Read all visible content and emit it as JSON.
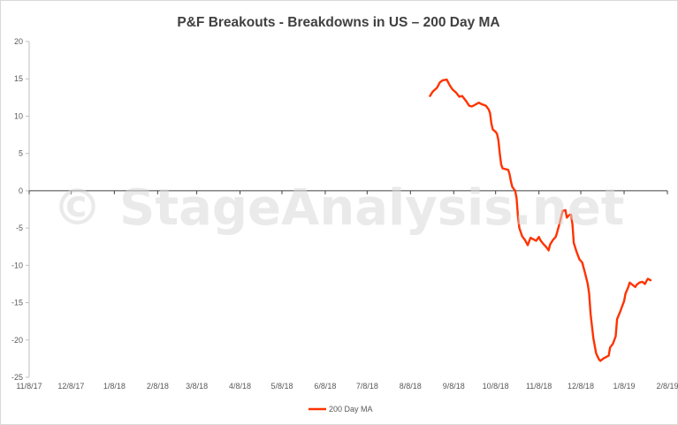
{
  "chart_data": {
    "type": "line",
    "title": "P&F Breakouts - Breakdowns in US – 200 Day MA",
    "watermark": "© StageAnalysis.net",
    "xlabel": "",
    "ylabel": "",
    "x_tick_labels": [
      "11/8/17",
      "12/8/17",
      "1/8/18",
      "2/8/18",
      "3/8/18",
      "4/8/18",
      "5/8/18",
      "6/8/18",
      "7/8/18",
      "8/8/18",
      "9/8/18",
      "10/8/18",
      "11/8/18",
      "12/8/18",
      "1/8/19",
      "2/8/19"
    ],
    "y_ticks": [
      20,
      15,
      10,
      5,
      0,
      -5,
      -10,
      -15,
      -20,
      -25
    ],
    "ylim": [
      -25,
      20
    ],
    "grid": false,
    "legend_position": "bottom",
    "series": [
      {
        "name": "200 Day MA",
        "color": "#ff3300",
        "points": [
          [
            "2018-08-22",
            12.7
          ],
          [
            "2018-08-24",
            13.3
          ],
          [
            "2018-08-27",
            13.8
          ],
          [
            "2018-08-29",
            14.5
          ],
          [
            "2018-08-31",
            14.8
          ],
          [
            "2018-09-03",
            14.9
          ],
          [
            "2018-09-05",
            14.2
          ],
          [
            "2018-09-07",
            13.6
          ],
          [
            "2018-09-10",
            13.1
          ],
          [
            "2018-09-12",
            12.6
          ],
          [
            "2018-09-14",
            12.7
          ],
          [
            "2018-09-17",
            12.0
          ],
          [
            "2018-09-19",
            11.4
          ],
          [
            "2018-09-21",
            11.3
          ],
          [
            "2018-09-24",
            11.6
          ],
          [
            "2018-09-26",
            11.8
          ],
          [
            "2018-09-28",
            11.6
          ],
          [
            "2018-10-01",
            11.4
          ],
          [
            "2018-10-03",
            10.9
          ],
          [
            "2018-10-04",
            10.4
          ],
          [
            "2018-10-05",
            9.0
          ],
          [
            "2018-10-06",
            8.2
          ],
          [
            "2018-10-08",
            7.9
          ],
          [
            "2018-10-09",
            7.6
          ],
          [
            "2018-10-10",
            6.8
          ],
          [
            "2018-10-11",
            5.0
          ],
          [
            "2018-10-12",
            3.5
          ],
          [
            "2018-10-13",
            3.0
          ],
          [
            "2018-10-15",
            2.9
          ],
          [
            "2018-10-17",
            2.8
          ],
          [
            "2018-10-18",
            2.2
          ],
          [
            "2018-10-19",
            1.2
          ],
          [
            "2018-10-20",
            0.5
          ],
          [
            "2018-10-22",
            0.0
          ],
          [
            "2018-10-23",
            -1.0
          ],
          [
            "2018-10-24",
            -3.5
          ],
          [
            "2018-10-25",
            -5.0
          ],
          [
            "2018-10-27",
            -6.1
          ],
          [
            "2018-10-29",
            -6.6
          ],
          [
            "2018-10-31",
            -7.3
          ],
          [
            "2018-11-02",
            -6.3
          ],
          [
            "2018-11-04",
            -6.5
          ],
          [
            "2018-11-06",
            -6.7
          ],
          [
            "2018-11-08",
            -6.2
          ],
          [
            "2018-11-09",
            -6.6
          ],
          [
            "2018-11-11",
            -7.1
          ],
          [
            "2018-11-13",
            -7.5
          ],
          [
            "2018-11-15",
            -8.0
          ],
          [
            "2018-11-16",
            -7.2
          ],
          [
            "2018-11-18",
            -6.6
          ],
          [
            "2018-11-20",
            -6.2
          ],
          [
            "2018-11-21",
            -5.6
          ],
          [
            "2018-11-23",
            -4.2
          ],
          [
            "2018-11-25",
            -2.7
          ],
          [
            "2018-11-27",
            -2.6
          ],
          [
            "2018-11-28",
            -3.6
          ],
          [
            "2018-11-30",
            -3.2
          ],
          [
            "2018-12-01",
            -3.2
          ],
          [
            "2018-12-02",
            -4.5
          ],
          [
            "2018-12-03",
            -7.0
          ],
          [
            "2018-12-05",
            -8.2
          ],
          [
            "2018-12-07",
            -9.2
          ],
          [
            "2018-12-09",
            -9.6
          ],
          [
            "2018-12-11",
            -11.0
          ],
          [
            "2018-12-13",
            -12.5
          ],
          [
            "2018-12-14",
            -13.8
          ],
          [
            "2018-12-15",
            -16.5
          ],
          [
            "2018-12-17",
            -19.8
          ],
          [
            "2018-12-19",
            -21.8
          ],
          [
            "2018-12-21",
            -22.6
          ],
          [
            "2018-12-22",
            -22.8
          ],
          [
            "2018-12-24",
            -22.5
          ],
          [
            "2018-12-26",
            -22.3
          ],
          [
            "2018-12-28",
            -22.1
          ],
          [
            "2018-12-29",
            -21.0
          ],
          [
            "2018-12-31",
            -20.5
          ],
          [
            "2019-01-02",
            -19.5
          ],
          [
            "2019-01-03",
            -17.2
          ],
          [
            "2019-01-05",
            -16.3
          ],
          [
            "2019-01-07",
            -15.3
          ],
          [
            "2019-01-08",
            -14.8
          ],
          [
            "2019-01-09",
            -13.8
          ],
          [
            "2019-01-11",
            -12.9
          ],
          [
            "2019-01-12",
            -12.3
          ],
          [
            "2019-01-14",
            -12.6
          ],
          [
            "2019-01-16",
            -12.9
          ],
          [
            "2019-01-17",
            -12.6
          ],
          [
            "2019-01-19",
            -12.3
          ],
          [
            "2019-01-21",
            -12.2
          ],
          [
            "2019-01-23",
            -12.5
          ],
          [
            "2019-01-24",
            -12.1
          ],
          [
            "2019-01-25",
            -11.8
          ],
          [
            "2019-01-27",
            -12.0
          ]
        ]
      }
    ]
  }
}
